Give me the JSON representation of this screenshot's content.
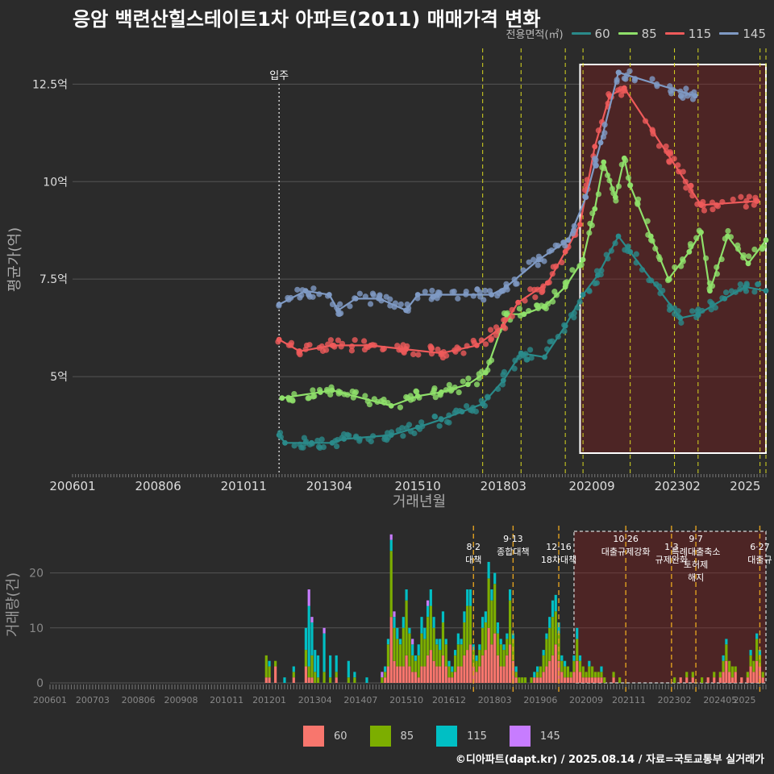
{
  "title": "응암 백련산힐스테이트1차 아파트(2011) 매매가격 변화",
  "legend_title": "전용면적(㎡)",
  "area_colors": {
    "60": "#2a8a8a",
    "85": "#8fe06a",
    "115": "#ee5a5a",
    "145": "#7f9ac4"
  },
  "volume_colors": {
    "60": "#f8766d",
    "85": "#7cae00",
    "115": "#00bfc4",
    "145": "#c77cff"
  },
  "credit": "©디아파트(dapt.kr) / 2025.08.14 / 자료=국토교통부 실거래가",
  "chart_data": [
    {
      "type": "line",
      "name": "price",
      "xlabel": "거래년월",
      "ylabel": "평균가(억)",
      "xlim": [
        "2006-01",
        "2025-08"
      ],
      "ylim": [
        2.5,
        13.5
      ],
      "x_tick_labels": [
        "200601",
        "200806",
        "201011",
        "201304",
        "201510",
        "201803",
        "202009",
        "202302",
        "2025"
      ],
      "y_tick_labels": [
        "5억",
        "7.5억",
        "10억",
        "12.5억"
      ],
      "y_ticks": [
        5,
        7.5,
        10,
        12.5
      ],
      "grid": true,
      "annotation": "입주",
      "move_in": "2011-11",
      "highlight_range": [
        "2020-05",
        "2025-08"
      ],
      "policy_lines": [
        "2017-08",
        "2018-09",
        "2019-12",
        "2020-06",
        "2021-10",
        "2023-01",
        "2023-09",
        "2025-06",
        "2025-08"
      ],
      "series": [
        {
          "name": "60",
          "points": [
            [
              "2011-11",
              3.5
            ],
            [
              "2012-01",
              3.3
            ],
            [
              "2012-10",
              3.3
            ],
            [
              "2013-05",
              3.3
            ],
            [
              "2013-09",
              3.4
            ],
            [
              "2015-01",
              3.5
            ],
            [
              "2015-10",
              3.7
            ],
            [
              "2016-06",
              3.9
            ],
            [
              "2017-01",
              4.1
            ],
            [
              "2017-08",
              4.3
            ],
            [
              "2018-03",
              4.9
            ],
            [
              "2018-09",
              5.6
            ],
            [
              "2019-05",
              5.5
            ],
            [
              "2019-12",
              6.3
            ],
            [
              "2020-06",
              7.1
            ],
            [
              "2020-11",
              7.6
            ],
            [
              "2021-06",
              8.6
            ],
            [
              "2021-10",
              8.2
            ],
            [
              "2023-03",
              6.5
            ],
            [
              "2023-09",
              6.6
            ],
            [
              "2024-06",
              7.0
            ],
            [
              "2025-01",
              7.3
            ],
            [
              "2025-08",
              7.2
            ]
          ]
        },
        {
          "name": "85",
          "points": [
            [
              "2011-12",
              4.45
            ],
            [
              "2013-01",
              4.6
            ],
            [
              "2013-05",
              4.65
            ],
            [
              "2015-01",
              4.25
            ],
            [
              "2015-10",
              4.5
            ],
            [
              "2016-06",
              4.6
            ],
            [
              "2017-03",
              4.8
            ],
            [
              "2017-09",
              5.1
            ],
            [
              "2018-04",
              6.6
            ],
            [
              "2018-10",
              6.6
            ],
            [
              "2019-05",
              6.8
            ],
            [
              "2019-12",
              7.3
            ],
            [
              "2020-06",
              8.0
            ],
            [
              "2020-10",
              9.3
            ],
            [
              "2021-01",
              10.5
            ],
            [
              "2021-05",
              9.6
            ],
            [
              "2021-08",
              10.6
            ],
            [
              "2021-10",
              9.9
            ],
            [
              "2022-05",
              8.6
            ],
            [
              "2022-11",
              7.5
            ],
            [
              "2023-06",
              8.2
            ],
            [
              "2023-10",
              8.7
            ],
            [
              "2024-01",
              7.2
            ],
            [
              "2024-07",
              8.6
            ],
            [
              "2025-02",
              7.9
            ],
            [
              "2025-08",
              8.5
            ]
          ]
        },
        {
          "name": "115",
          "points": [
            [
              "2011-11",
              5.95
            ],
            [
              "2012-06",
              5.65
            ],
            [
              "2013-05",
              5.8
            ],
            [
              "2014-06",
              5.8
            ],
            [
              "2015-06",
              5.7
            ],
            [
              "2016-06",
              5.6
            ],
            [
              "2017-06",
              5.8
            ],
            [
              "2018-03",
              6.3
            ],
            [
              "2018-08",
              6.9
            ],
            [
              "2019-06",
              7.4
            ],
            [
              "2019-12",
              8.2
            ],
            [
              "2020-05",
              8.9
            ],
            [
              "2020-10",
              10.9
            ],
            [
              "2021-03",
              12.2
            ],
            [
              "2021-08",
              12.4
            ],
            [
              "2023-10",
              9.4
            ],
            [
              "2025-05",
              9.5
            ]
          ]
        },
        {
          "name": "145",
          "points": [
            [
              "2011-11",
              6.85
            ],
            [
              "2012-08",
              7.2
            ],
            [
              "2013-04",
              7.1
            ],
            [
              "2013-07",
              6.7
            ],
            [
              "2014-01",
              7.0
            ],
            [
              "2014-09",
              7.0
            ],
            [
              "2015-06",
              6.7
            ],
            [
              "2015-10",
              7.1
            ],
            [
              "2017-11",
              7.1
            ],
            [
              "2018-04",
              7.3
            ],
            [
              "2019-03",
              8.0
            ],
            [
              "2020-01",
              8.5
            ],
            [
              "2020-07",
              9.6
            ],
            [
              "2020-12",
              11.0
            ],
            [
              "2021-06",
              12.8
            ],
            [
              "2023-08",
              12.2
            ]
          ]
        }
      ]
    },
    {
      "type": "bar",
      "name": "volume",
      "stacked": true,
      "ylabel": "거래량(건)",
      "ylim": [
        0,
        28
      ],
      "y_ticks": [
        0,
        10,
        20
      ],
      "x_tick_labels": [
        "200601",
        "200703",
        "200806",
        "200908",
        "201011",
        "201201",
        "201304",
        "201407",
        "201510",
        "201612",
        "201803",
        "201906",
        "202009",
        "202111",
        "202302",
        "202405",
        "2025"
      ],
      "policies": [
        {
          "date": "2017-08",
          "label": "8·2 대책"
        },
        {
          "date": "2018-09",
          "label": "9·13 종합대책"
        },
        {
          "date": "2019-12",
          "label": "12·16 18차대책"
        },
        {
          "date": "2021-10",
          "label": "10·26 대출규제강화"
        },
        {
          "date": "2023-01",
          "label": "1·3 규제완화"
        },
        {
          "date": "2023-09",
          "label": "9·7 특례대출축소 토허제 해지"
        },
        {
          "date": "2025-06",
          "label": "6·27 대출규"
        }
      ],
      "highlight_range": [
        "2020-05",
        "2025-08"
      ],
      "legend": [
        "60",
        "85",
        "115",
        "145"
      ],
      "data": [
        [
          "2011-12",
          1,
          4,
          0,
          0
        ],
        [
          "2012-01",
          1,
          2,
          1,
          0
        ],
        [
          "2012-03",
          3,
          1,
          0,
          0
        ],
        [
          "2012-06",
          0,
          0,
          1,
          0
        ],
        [
          "2012-09",
          1,
          1,
          1,
          0
        ],
        [
          "2013-01",
          3,
          3,
          4,
          0
        ],
        [
          "2013-02",
          1,
          2,
          11,
          3
        ],
        [
          "2013-03",
          1,
          4,
          6,
          1
        ],
        [
          "2013-04",
          0,
          2,
          4,
          0
        ],
        [
          "2013-05",
          0,
          1,
          4,
          0
        ],
        [
          "2013-07",
          0,
          2,
          7,
          1
        ],
        [
          "2013-09",
          0,
          1,
          4,
          0
        ],
        [
          "2013-11",
          1,
          1,
          3,
          0
        ],
        [
          "2014-03",
          0,
          1,
          3,
          0
        ],
        [
          "2014-05",
          0,
          1,
          1,
          0
        ],
        [
          "2014-09",
          0,
          0,
          1,
          0
        ],
        [
          "2015-02",
          0,
          1,
          0,
          1
        ],
        [
          "2015-03",
          1,
          1,
          1,
          0
        ],
        [
          "2015-04",
          3,
          4,
          1,
          0
        ],
        [
          "2015-05",
          12,
          12,
          2,
          1
        ],
        [
          "2015-06",
          4,
          6,
          2,
          1
        ],
        [
          "2015-07",
          3,
          5,
          2,
          0
        ],
        [
          "2015-08",
          3,
          4,
          1,
          0
        ],
        [
          "2015-09",
          3,
          7,
          2,
          0
        ],
        [
          "2015-10",
          5,
          10,
          2,
          0
        ],
        [
          "2015-11",
          3,
          6,
          1,
          0
        ],
        [
          "2015-12",
          2,
          3,
          2,
          1
        ],
        [
          "2016-01",
          2,
          2,
          1,
          0
        ],
        [
          "2016-02",
          1,
          4,
          2,
          0
        ],
        [
          "2016-03",
          3,
          6,
          3,
          0
        ],
        [
          "2016-04",
          3,
          5,
          2,
          0
        ],
        [
          "2016-05",
          5,
          7,
          2,
          1
        ],
        [
          "2016-06",
          6,
          8,
          3,
          0
        ],
        [
          "2016-07",
          4,
          6,
          2,
          0
        ],
        [
          "2016-08",
          3,
          4,
          1,
          0
        ],
        [
          "2016-09",
          3,
          3,
          2,
          0
        ],
        [
          "2016-10",
          5,
          6,
          2,
          0
        ],
        [
          "2016-11",
          3,
          4,
          1,
          0
        ],
        [
          "2016-12",
          1,
          2,
          1,
          0
        ],
        [
          "2017-01",
          1,
          1,
          1,
          0
        ],
        [
          "2017-02",
          2,
          3,
          1,
          0
        ],
        [
          "2017-03",
          3,
          4,
          2,
          0
        ],
        [
          "2017-04",
          3,
          4,
          1,
          0
        ],
        [
          "2017-05",
          5,
          6,
          2,
          0
        ],
        [
          "2017-06",
          6,
          8,
          3,
          0
        ],
        [
          "2017-07",
          7,
          7,
          3,
          0
        ],
        [
          "2017-08",
          3,
          3,
          1,
          0
        ],
        [
          "2017-09",
          2,
          2,
          1,
          0
        ],
        [
          "2017-10",
          3,
          3,
          1,
          0
        ],
        [
          "2017-11",
          5,
          5,
          2,
          0
        ],
        [
          "2017-12",
          6,
          5,
          2,
          0
        ],
        [
          "2018-01",
          10,
          9,
          3,
          0
        ],
        [
          "2018-02",
          7,
          8,
          2,
          0
        ],
        [
          "2018-03",
          9,
          9,
          2,
          0
        ],
        [
          "2018-04",
          5,
          4,
          2,
          0
        ],
        [
          "2018-05",
          3,
          4,
          1,
          0
        ],
        [
          "2018-06",
          3,
          3,
          1,
          0
        ],
        [
          "2018-07",
          5,
          3,
          1,
          0
        ],
        [
          "2018-08",
          7,
          8,
          2,
          0
        ],
        [
          "2018-09",
          4,
          4,
          1,
          0
        ],
        [
          "2018-10",
          1,
          1,
          1,
          0
        ],
        [
          "2018-11",
          0,
          1,
          0,
          0
        ],
        [
          "2018-12",
          0,
          1,
          0,
          0
        ],
        [
          "2019-01",
          0,
          1,
          0,
          0
        ],
        [
          "2019-03",
          0,
          1,
          0,
          0
        ],
        [
          "2019-04",
          1,
          0,
          1,
          0
        ],
        [
          "2019-05",
          1,
          1,
          1,
          0
        ],
        [
          "2019-06",
          1,
          2,
          0,
          0
        ],
        [
          "2019-07",
          2,
          3,
          1,
          0
        ],
        [
          "2019-08",
          3,
          5,
          1,
          0
        ],
        [
          "2019-09",
          4,
          6,
          2,
          0
        ],
        [
          "2019-10",
          5,
          7,
          3,
          0
        ],
        [
          "2019-11",
          7,
          6,
          3,
          0
        ],
        [
          "2019-12",
          4,
          5,
          2,
          0
        ],
        [
          "2020-01",
          2,
          2,
          1,
          0
        ],
        [
          "2020-02",
          1,
          2,
          1,
          0
        ],
        [
          "2020-03",
          1,
          2,
          0,
          0
        ],
        [
          "2020-04",
          1,
          1,
          0,
          0
        ],
        [
          "2020-05",
          2,
          2,
          1,
          0
        ],
        [
          "2020-06",
          4,
          4,
          2,
          0
        ],
        [
          "2020-07",
          2,
          2,
          1,
          0
        ],
        [
          "2020-08",
          1,
          2,
          0,
          0
        ],
        [
          "2020-09",
          1,
          1,
          0,
          0
        ],
        [
          "2020-10",
          1,
          2,
          1,
          0
        ],
        [
          "2020-11",
          1,
          2,
          0,
          0
        ],
        [
          "2020-12",
          1,
          1,
          0,
          0
        ],
        [
          "2021-01",
          1,
          1,
          0,
          0
        ],
        [
          "2021-02",
          1,
          1,
          1,
          0
        ],
        [
          "2021-03",
          0,
          1,
          0,
          0
        ],
        [
          "2021-06",
          1,
          1,
          0,
          0
        ],
        [
          "2021-08",
          0,
          1,
          0,
          0
        ],
        [
          "2023-02",
          0,
          1,
          0,
          0
        ],
        [
          "2023-04",
          1,
          0,
          0,
          0
        ],
        [
          "2023-06",
          1,
          1,
          0,
          0
        ],
        [
          "2023-08",
          1,
          1,
          0,
          0
        ],
        [
          "2023-11",
          0,
          1,
          0,
          0
        ],
        [
          "2024-01",
          1,
          0,
          0,
          0
        ],
        [
          "2024-03",
          1,
          1,
          0,
          0
        ],
        [
          "2024-05",
          1,
          1,
          0,
          0
        ],
        [
          "2024-06",
          2,
          2,
          1,
          0
        ],
        [
          "2024-07",
          4,
          3,
          1,
          0
        ],
        [
          "2024-08",
          2,
          2,
          0,
          0
        ],
        [
          "2024-09",
          1,
          2,
          0,
          0
        ],
        [
          "2024-10",
          2,
          1,
          0,
          0
        ],
        [
          "2024-12",
          1,
          0,
          0,
          0
        ],
        [
          "2025-02",
          1,
          1,
          0,
          0
        ],
        [
          "2025-03",
          3,
          2,
          1,
          0
        ],
        [
          "2025-04",
          2,
          2,
          0,
          0
        ],
        [
          "2025-05",
          4,
          4,
          1,
          0
        ],
        [
          "2025-06",
          3,
          2,
          1,
          0
        ],
        [
          "2025-07",
          1,
          1,
          0,
          0
        ]
      ]
    }
  ]
}
